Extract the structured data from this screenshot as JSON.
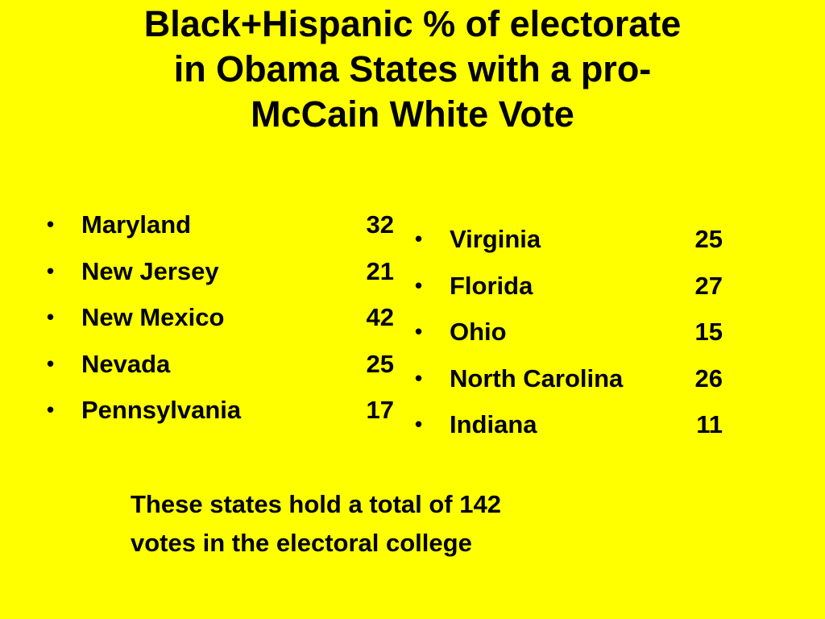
{
  "title": {
    "line1": "Black+Hispanic % of electorate",
    "line2": "in Obama States with a pro-",
    "line3": "McCain White Vote"
  },
  "bullet_glyph": "•",
  "left_states": [
    {
      "name": "Maryland",
      "value": "32"
    },
    {
      "name": "New Jersey",
      "value": "21"
    },
    {
      "name": "New Mexico",
      "value": "42"
    },
    {
      "name": "Nevada",
      "value": "25"
    },
    {
      "name": "Pennsylvania",
      "value": "17"
    }
  ],
  "right_states": [
    {
      "name": "Virginia",
      "value": "25"
    },
    {
      "name": "Florida",
      "value": "27"
    },
    {
      "name": "Ohio",
      "value": "15"
    },
    {
      "name": "North Carolina",
      "value": "26"
    },
    {
      "name": "Indiana",
      "value": "11"
    }
  ],
  "footnote": {
    "line1": "These states hold a total of 142",
    "line2": "votes in the electoral college"
  },
  "colors": {
    "background": "#ffff00",
    "text": "#000000"
  }
}
